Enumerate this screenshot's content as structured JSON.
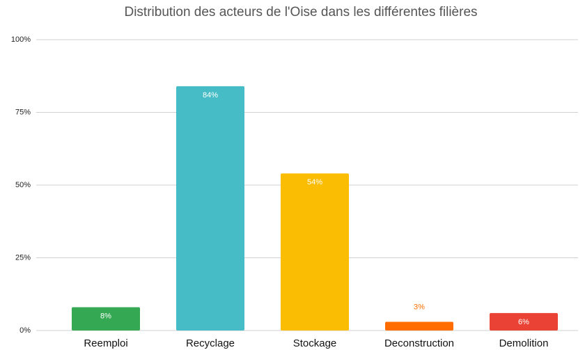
{
  "chart_data": {
    "type": "bar",
    "title": "Distribution des acteurs de l'Oise dans les différentes filières",
    "categories": [
      "Reemploi",
      "Recyclage",
      "Stockage",
      "Deconstruction",
      "Demolition"
    ],
    "values": [
      8,
      84,
      54,
      3,
      6
    ],
    "value_labels": [
      "8%",
      "84%",
      "54%",
      "3%",
      "6%"
    ],
    "colors": [
      "#34a853",
      "#46bdc6",
      "#fbbc04",
      "#ff6d01",
      "#ea4335"
    ],
    "ylim": [
      0,
      100
    ],
    "yticks": [
      {
        "value": 0,
        "label": "0%"
      },
      {
        "value": 25,
        "label": "25%"
      },
      {
        "value": 50,
        "label": "50%"
      },
      {
        "value": 75,
        "label": "75%"
      },
      {
        "value": 100,
        "label": "100%"
      }
    ],
    "grid": true
  }
}
